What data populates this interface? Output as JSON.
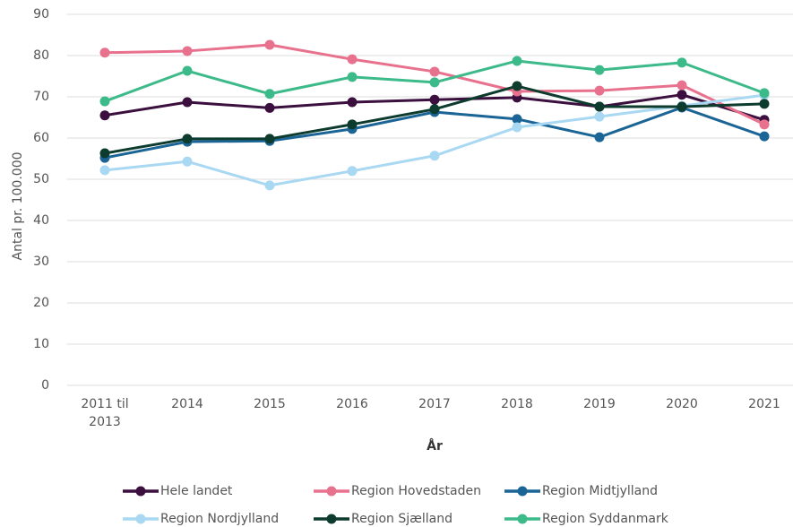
{
  "chart_data": {
    "type": "line",
    "y_label": "Antal pr. 100.000",
    "x_label": "År",
    "categories": [
      "2011 til 2013",
      "2014",
      "2015",
      "2016",
      "2017",
      "2018",
      "2019",
      "2020",
      "2021"
    ],
    "series": [
      {
        "name": "Hele landet",
        "color": "#3b0f3e",
        "values": [
          65.5,
          68.7,
          67.3,
          68.7,
          69.3,
          69.8,
          67.6,
          70.5,
          64.4
        ]
      },
      {
        "name": "Region Hovedstaden",
        "color": "#e8718d",
        "values": [
          80.7,
          81.1,
          82.6,
          79.1,
          76.1,
          71.3,
          71.5,
          72.8,
          63.3
        ]
      },
      {
        "name": "Region Midtjylland",
        "color": "#1a6496",
        "values": [
          55.2,
          59.1,
          59.3,
          62.2,
          66.3,
          64.6,
          60.2,
          67.4,
          60.4
        ]
      },
      {
        "name": "Region Nordjylland",
        "color": "#a9d8f2",
        "values": [
          52.2,
          54.3,
          48.5,
          52.0,
          55.7,
          62.6,
          65.2,
          67.8,
          70.4
        ]
      },
      {
        "name": "Region Sjælland",
        "color": "#0d3b2e",
        "values": [
          56.3,
          59.8,
          59.8,
          63.3,
          67.0,
          72.6,
          67.6,
          67.6,
          68.3
        ]
      },
      {
        "name": "Region Syddanmark",
        "color": "#3dba8a",
        "values": [
          68.9,
          76.3,
          70.7,
          74.8,
          73.5,
          78.7,
          76.5,
          78.3,
          70.9
        ]
      }
    ],
    "ylim": [
      0,
      90
    ],
    "yticks": [
      0,
      10,
      20,
      30,
      40,
      50,
      60,
      70,
      80,
      90
    ],
    "grid": true,
    "legend": "bottom"
  }
}
